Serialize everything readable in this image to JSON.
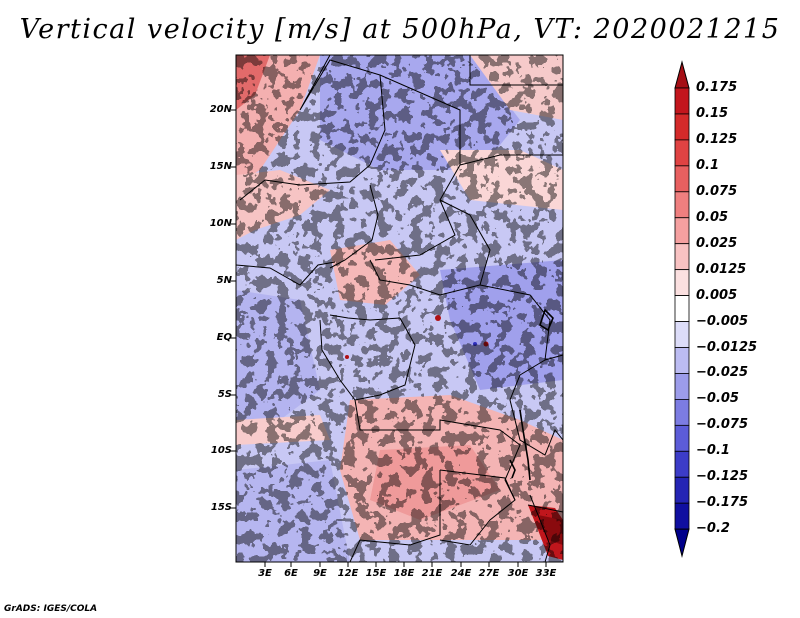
{
  "title": "Vertical velocity [m/s] at 500hPa, VT: 2020021215",
  "credit": "GrADS: IGES/COLA",
  "map": {
    "lat_labels": [
      "20N",
      "15N",
      "10N",
      "5N",
      "EQ",
      "5S",
      "10S",
      "15S"
    ],
    "lon_labels": [
      "3E",
      "6E",
      "9E",
      "12E",
      "15E",
      "18E",
      "21E",
      "24E",
      "27E",
      "30E",
      "33E"
    ]
  },
  "colorbar": {
    "labels": [
      "0.175",
      "0.15",
      "0.125",
      "0.1",
      "0.075",
      "0.05",
      "0.025",
      "0.0125",
      "0.005",
      "−0.005",
      "−0.0125",
      "−0.025",
      "−0.05",
      "−0.075",
      "−0.1",
      "−0.125",
      "−0.175",
      "−0.2"
    ],
    "colors": [
      "#a50f15",
      "#c3161d",
      "#d42a2a",
      "#e04343",
      "#e86060",
      "#ef7f7f",
      "#f5a0a0",
      "#f8c2c2",
      "#fbe0e0",
      "#ffffff",
      "#dcdcf8",
      "#bcbcf2",
      "#9c9cea",
      "#7c7ce2",
      "#5c5cd8",
      "#3c3cc8",
      "#2424b4",
      "#100fa0",
      "#00008b"
    ]
  }
}
